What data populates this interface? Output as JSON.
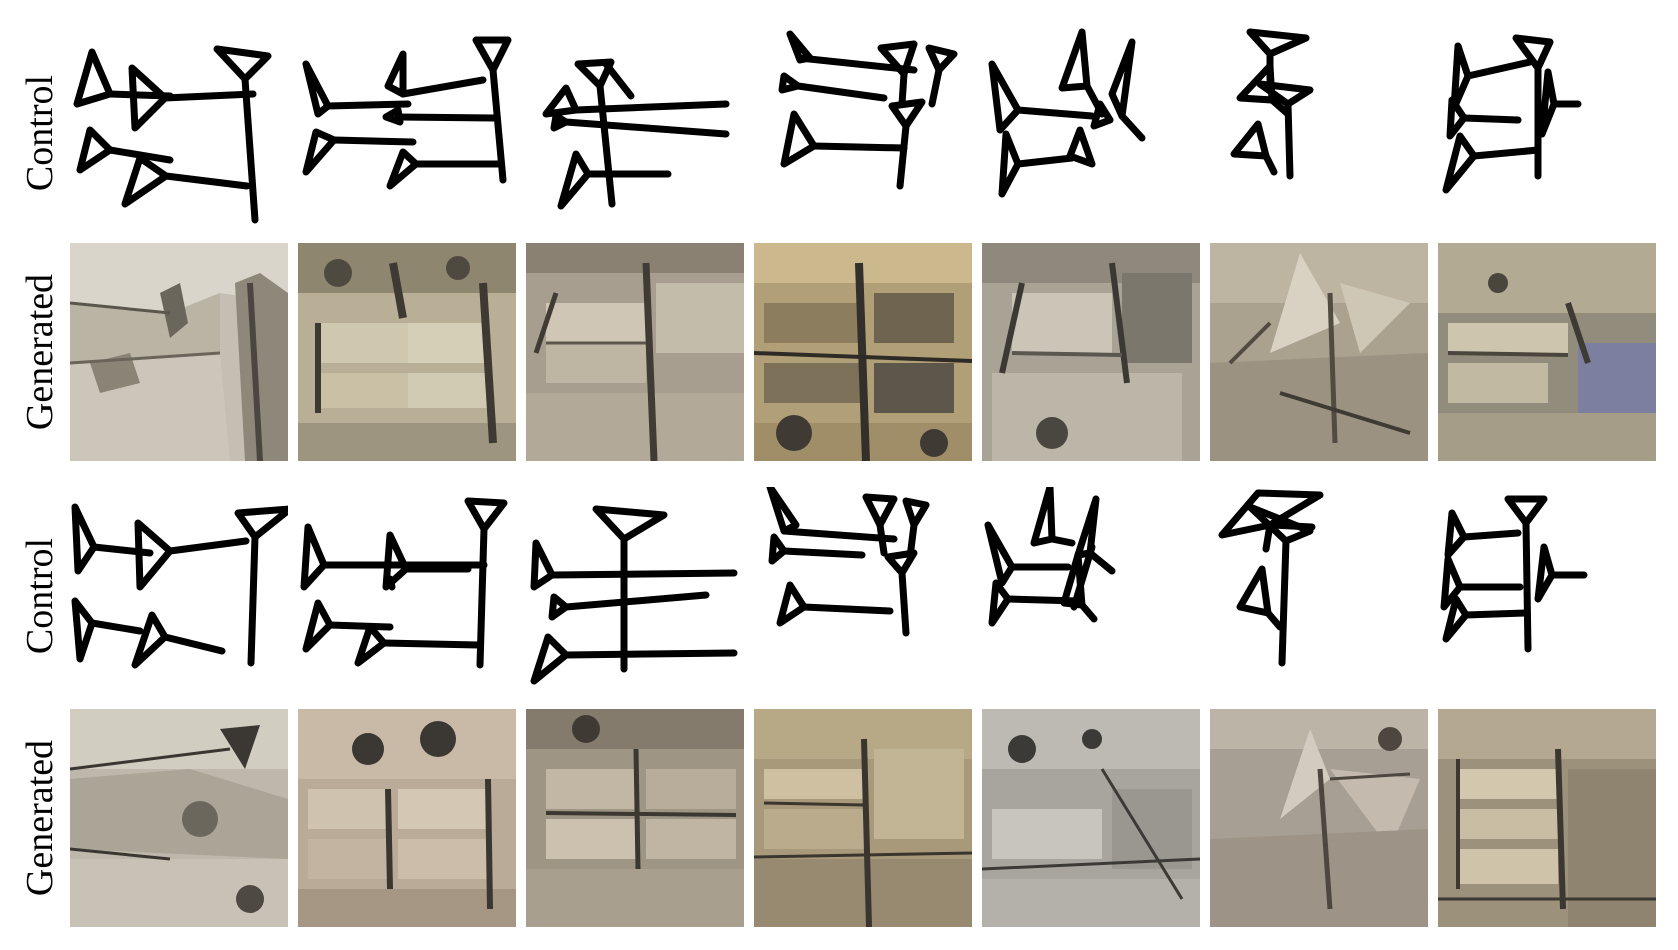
{
  "labels": {
    "control": "Control",
    "generated": "Generated"
  },
  "palette": {
    "stroke": "#000000",
    "tex_a": [
      "#b9b3a4",
      "#d8d3c6",
      "#8f887a",
      "#e6e2d8"
    ],
    "tex_b": [
      "#a99f86",
      "#cfc6ae",
      "#6f6a5d",
      "#e0dac8"
    ],
    "tex_c": [
      "#9b9182",
      "#c2b9a8",
      "#4a463f",
      "#d8d0c0"
    ],
    "tex_d": [
      "#9c8a64",
      "#c9b88f",
      "#3e3a34",
      "#ddd0b0"
    ],
    "tex_e": [
      "#8f8d86",
      "#bdbab2",
      "#3b3a38",
      "#dcd9d2"
    ],
    "tex_f": [
      "#a39a8a",
      "#cbc3b3",
      "#5a554c",
      "#e2dccf"
    ],
    "tex_g": [
      "#8e8a7a",
      "#b9b29d",
      "#4d4a42",
      "#d6cfba"
    ]
  }
}
